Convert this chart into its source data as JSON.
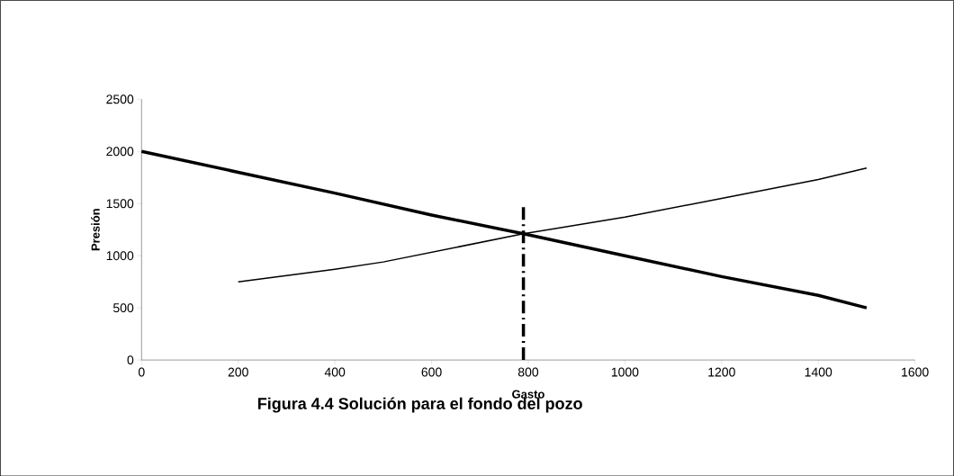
{
  "chart_data": {
    "type": "line",
    "title": "Figura 4.4 Solución para el fondo del pozo",
    "xlabel": "Gasto",
    "ylabel": "Presión",
    "xlim": [
      0,
      1600
    ],
    "xticks": [
      0,
      200,
      400,
      600,
      800,
      1000,
      1200,
      1400,
      1600
    ],
    "ylim": [
      0,
      2500
    ],
    "yticks": [
      0,
      500,
      1000,
      1500,
      2000,
      2500
    ],
    "grid": false,
    "marker": "none",
    "series": [
      {
        "color": "#000000",
        "x": [
          0,
          200,
          400,
          600,
          790,
          1000,
          1200,
          1400,
          1500
        ],
        "values": [
          2000,
          1800,
          1600,
          1390,
          1210,
          1000,
          800,
          620,
          500
        ],
        "line_style": "solid"
      },
      {
        "color": "#000000",
        "x": [
          200,
          400,
          500,
          790,
          1000,
          1200,
          1400,
          1500
        ],
        "values": [
          750,
          870,
          940,
          1210,
          1370,
          1550,
          1730,
          1840
        ],
        "line_style": "solid"
      },
      {
        "color": "#000000",
        "x": [
          790,
          790
        ],
        "values": [
          0,
          1500
        ],
        "line_style": "dashed"
      }
    ]
  }
}
